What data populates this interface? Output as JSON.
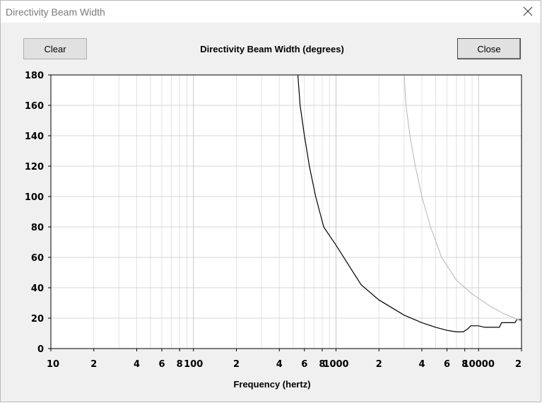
{
  "window": {
    "title": "Directivity Beam Width"
  },
  "buttons": {
    "clear_label": "Clear",
    "close_label": "Close"
  },
  "chart_data": {
    "type": "line",
    "title": "Directivity Beam Width (degrees)",
    "xlabel": "Frequency (hertz)",
    "ylabel": "",
    "xscale": "log",
    "xlim": [
      10,
      20000
    ],
    "ylim": [
      0,
      180
    ],
    "grid": true,
    "y_ticks": [
      0,
      20,
      40,
      60,
      80,
      100,
      120,
      140,
      160,
      180
    ],
    "x_tick_labels": [
      {
        "x": 10,
        "label": "10"
      },
      {
        "x": 20,
        "label": "2"
      },
      {
        "x": 40,
        "label": "4"
      },
      {
        "x": 60,
        "label": "6"
      },
      {
        "x": 80,
        "label": "8"
      },
      {
        "x": 100,
        "label": "100"
      },
      {
        "x": 200,
        "label": "2"
      },
      {
        "x": 400,
        "label": "4"
      },
      {
        "x": 600,
        "label": "6"
      },
      {
        "x": 800,
        "label": "8"
      },
      {
        "x": 1000,
        "label": "1000"
      },
      {
        "x": 2000,
        "label": "2"
      },
      {
        "x": 4000,
        "label": "4"
      },
      {
        "x": 6000,
        "label": "6"
      },
      {
        "x": 8000,
        "label": "8"
      },
      {
        "x": 10000,
        "label": "10000"
      },
      {
        "x": 20000,
        "label": "2"
      }
    ],
    "series": [
      {
        "color": "#000000",
        "points": [
          [
            540,
            180
          ],
          [
            560,
            160
          ],
          [
            600,
            140
          ],
          [
            650,
            120
          ],
          [
            720,
            100
          ],
          [
            820,
            80
          ],
          [
            1000,
            68
          ],
          [
            1500,
            42
          ],
          [
            2000,
            32
          ],
          [
            3000,
            22
          ],
          [
            4000,
            17
          ],
          [
            5000,
            14
          ],
          [
            6000,
            12
          ],
          [
            7000,
            11
          ],
          [
            7800,
            11
          ],
          [
            8400,
            13
          ],
          [
            8800,
            15
          ],
          [
            10000,
            15
          ],
          [
            11000,
            14
          ],
          [
            14000,
            14
          ],
          [
            14500,
            17
          ],
          [
            18000,
            17
          ],
          [
            18500,
            19
          ],
          [
            20000,
            19
          ]
        ]
      },
      {
        "color": "#c0c0c0",
        "points": [
          [
            3000,
            180
          ],
          [
            3100,
            160
          ],
          [
            3300,
            140
          ],
          [
            3600,
            120
          ],
          [
            4000,
            100
          ],
          [
            4600,
            80
          ],
          [
            5500,
            60
          ],
          [
            7000,
            45
          ],
          [
            9000,
            36
          ],
          [
            12000,
            28
          ],
          [
            15000,
            23
          ],
          [
            20000,
            18
          ]
        ]
      }
    ]
  }
}
